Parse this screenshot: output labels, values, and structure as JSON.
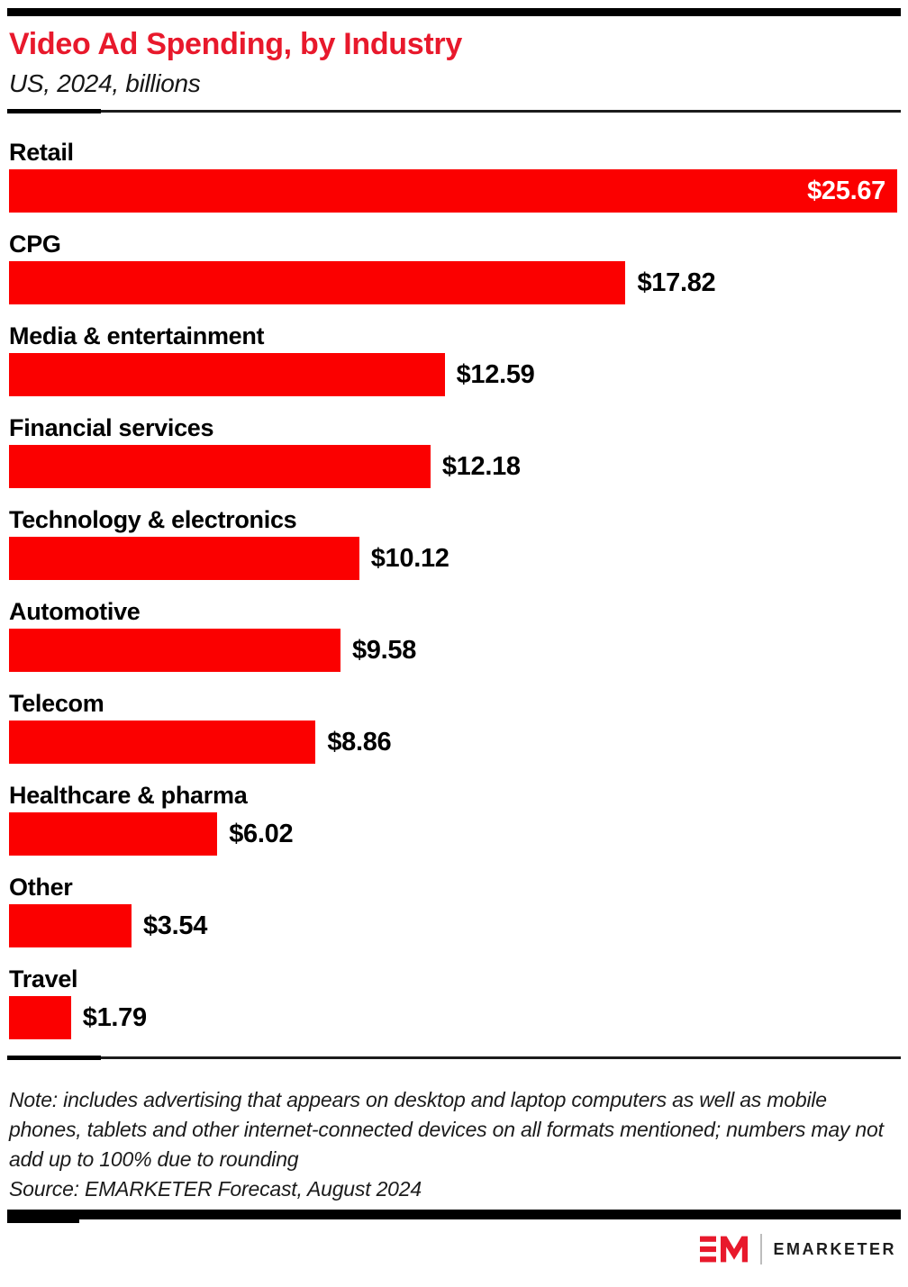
{
  "header": {
    "title": "Video Ad Spending, by Industry",
    "subtitle": "US, 2024, billions"
  },
  "chart_data": {
    "type": "bar",
    "orientation": "horizontal",
    "title": "Video Ad Spending, by Industry",
    "subtitle": "US, 2024, billions",
    "unit": "USD billions",
    "categories": [
      "Retail",
      "CPG",
      "Media & entertainment",
      "Financial services",
      "Technology & electronics",
      "Automotive",
      "Telecom",
      "Healthcare & pharma",
      "Other",
      "Travel"
    ],
    "values": [
      25.67,
      17.82,
      12.59,
      12.18,
      10.12,
      9.58,
      8.86,
      6.02,
      3.54,
      1.79
    ],
    "value_labels": [
      "$25.67",
      "$17.82",
      "$12.59",
      "$12.18",
      "$10.12",
      "$9.58",
      "$8.86",
      "$6.02",
      "$3.54",
      "$1.79"
    ],
    "xlim": [
      0,
      25.67
    ],
    "grid": false,
    "legend": "none",
    "bar_color": "#FB0000"
  },
  "footer": {
    "note": "Note: includes advertising that appears on desktop and laptop computers as well as mobile phones, tablets and other internet-connected devices on all formats mentioned; numbers may not add up to 100% due to rounding",
    "source": "Source: EMARKETER Forecast, August 2024",
    "brand": "EMARKETER"
  },
  "colors": {
    "accent_red": "#E8192C",
    "bar_red": "#FB0000",
    "text_black": "#111111",
    "rule_black": "#000000"
  }
}
